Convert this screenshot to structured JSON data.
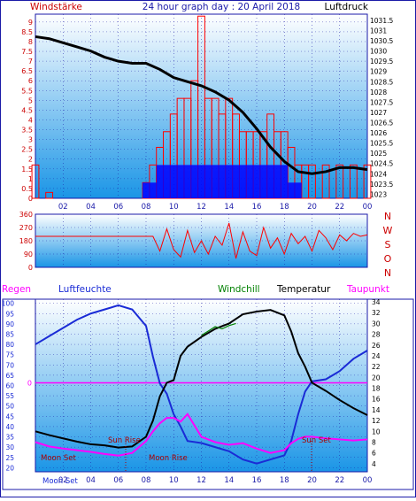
{
  "header": {
    "left_title": "Windstärke",
    "center_title": "24 hour graph day : 20 April 2018",
    "right_title": "Luftdruck"
  },
  "colors": {
    "plot_top": "#ffffff",
    "plot_bottom": "#1a95e6",
    "frame": "#1a1aa8",
    "wind_red": "#ff0000",
    "wind_blue": "#0000ff",
    "pressure": "#000000",
    "humidity": "#1a2bd6",
    "windchill": "#008000",
    "temperature": "#000000",
    "dewpoint": "#ff00ff",
    "rain": "#ff00ff",
    "sun_moon": "#aa0000"
  },
  "chart_data": [
    {
      "type": "bar",
      "panel": "wind-speed-and-pressure",
      "left_axis_label": "Windstärke",
      "right_axis_label": "Luftdruck",
      "x_ticks": [
        "02",
        "04",
        "06",
        "08",
        "10",
        "12",
        "14",
        "16",
        "18",
        "20",
        "22",
        "00"
      ],
      "y_left_ticks": [
        "0",
        "0.5",
        "1",
        "1.5",
        "2",
        "2.5",
        "3",
        "3.5",
        "4",
        "4.5",
        "5",
        "5.5",
        "6",
        "6.5",
        "7",
        "7.5",
        "8",
        "8.5",
        "9"
      ],
      "y_right_ticks": [
        "1023",
        "1023.5",
        "1024",
        "1024.5",
        "1025",
        "1025.5",
        "1026",
        "1026.5",
        "1027",
        "1027.5",
        "1028",
        "1028.5",
        "1029",
        "1029.5",
        "1030",
        "1030.5",
        "1031",
        "1031.5"
      ],
      "ylim_left": [
        0,
        9.4
      ],
      "ylim_right": [
        1022.8,
        1031.8
      ],
      "x_range_hours": [
        0,
        24
      ],
      "series": [
        {
          "name": "Luftdruck",
          "kind": "line",
          "x": [
            0,
            1,
            2,
            3,
            4,
            5,
            6,
            7,
            8,
            9,
            10,
            11,
            12,
            13,
            14,
            15,
            16,
            17,
            18,
            19,
            20,
            21,
            22,
            23,
            24
          ],
          "y": [
            1030.7,
            1030.6,
            1030.4,
            1030.2,
            1030.0,
            1029.7,
            1029.5,
            1029.4,
            1029.4,
            1029.1,
            1028.7,
            1028.5,
            1028.3,
            1028.0,
            1027.6,
            1027.0,
            1026.2,
            1025.3,
            1024.6,
            1024.1,
            1024.0,
            1024.1,
            1024.3,
            1024.3,
            1024.2
          ]
        },
        {
          "name": "wind gust",
          "kind": "bar",
          "x": [
            0,
            1,
            2,
            3,
            4,
            5,
            6,
            7,
            8,
            8.5,
            9,
            9.5,
            10,
            10.5,
            11,
            11.5,
            12,
            12.5,
            13,
            13.5,
            14,
            14.5,
            15,
            15.5,
            16,
            16.5,
            17,
            17.5,
            18,
            18.5,
            19,
            19.5,
            20,
            21,
            22,
            23,
            24
          ],
          "y": [
            1.7,
            0.3,
            0,
            0,
            0,
            0,
            0,
            0,
            0.8,
            1.7,
            2.6,
            3.4,
            4.3,
            5.1,
            5.1,
            6.0,
            9.3,
            5.1,
            5.1,
            4.3,
            5.1,
            4.3,
            3.4,
            3.4,
            3.4,
            3.4,
            4.3,
            3.4,
            3.4,
            2.6,
            1.7,
            1.7,
            1.7,
            1.7,
            1.7,
            1.7,
            1.7
          ]
        },
        {
          "name": "wind speed",
          "kind": "bar",
          "x": [
            8,
            8.5,
            9,
            9.5,
            10,
            10.5,
            11,
            11.5,
            12,
            12.5,
            13,
            13.5,
            14,
            14.5,
            15,
            15.5,
            16,
            16.5,
            17,
            17.5,
            18,
            18.5,
            19
          ],
          "y": [
            0.8,
            0.8,
            1.7,
            1.7,
            1.7,
            1.7,
            1.7,
            1.7,
            1.7,
            1.7,
            1.7,
            1.7,
            1.7,
            1.7,
            1.7,
            1.7,
            1.7,
            1.7,
            1.7,
            1.7,
            1.7,
            0.8,
            0.8
          ]
        }
      ]
    },
    {
      "type": "scatter",
      "panel": "wind-direction",
      "x_range_hours": [
        0,
        24
      ],
      "y_ticks": [
        "0",
        "90",
        "180",
        "270",
        "360"
      ],
      "ylim": [
        0,
        360
      ],
      "direction_labels": [
        "N",
        "W",
        "S",
        "O",
        "N"
      ],
      "series": [
        {
          "name": "wind direction",
          "x": [
            0,
            1,
            2,
            3,
            4,
            5,
            6,
            6.5,
            7,
            7.5,
            8,
            8.5,
            9,
            9.5,
            10,
            10.5,
            11,
            11.5,
            12,
            12.5,
            13,
            13.5,
            14,
            14.5,
            15,
            15.5,
            16,
            16.5,
            17,
            17.5,
            18,
            18.5,
            19,
            19.5,
            20,
            20.5,
            21,
            21.5,
            22,
            22.5,
            23,
            23.5,
            24
          ],
          "y": [
            210,
            210,
            210,
            210,
            210,
            210,
            210,
            210,
            210,
            210,
            210,
            210,
            110,
            260,
            120,
            70,
            250,
            100,
            180,
            90,
            210,
            150,
            300,
            60,
            240,
            110,
            80,
            270,
            130,
            200,
            90,
            230,
            160,
            210,
            110,
            250,
            200,
            120,
            220,
            180,
            230,
            210,
            220
          ]
        }
      ]
    },
    {
      "type": "line",
      "panel": "temperature-humidity",
      "left_axis_label": "Regen",
      "legend": [
        "Regen",
        "Luftfeuchte",
        "Windchill",
        "Temperatur",
        "Taupunkt"
      ],
      "x_ticks": [
        "02",
        "04",
        "06",
        "08",
        "10",
        "12",
        "14",
        "16",
        "18",
        "20",
        "22",
        "00"
      ],
      "y_left_ticks": [
        "20",
        "25",
        "30",
        "35",
        "40",
        "45",
        "50",
        "55",
        "60",
        "65",
        "70",
        "75",
        "80",
        "85",
        "90",
        "95",
        "100"
      ],
      "y_left_range": [
        18,
        102
      ],
      "y_right_ticks": [
        "4",
        "6",
        "8",
        "10",
        "12",
        "14",
        "16",
        "18",
        "20",
        "22",
        "24",
        "26",
        "28",
        "30",
        "32",
        "34"
      ],
      "y_right_range": [
        2.5,
        34.5
      ],
      "rain_marker": "0",
      "annotations": [
        "Sun Rise",
        "Sun Set",
        "Moon Set",
        "Moon Rise",
        "Moon Set"
      ],
      "series": [
        {
          "name": "Luftfeuchte",
          "axis": "left",
          "x": [
            0,
            1,
            2,
            3,
            4,
            5,
            6,
            7,
            8,
            8.5,
            9,
            9.5,
            10,
            10.5,
            11,
            12,
            13,
            14,
            15,
            16,
            17,
            18,
            18.5,
            19,
            19.5,
            20,
            21,
            22,
            23,
            24
          ],
          "y": [
            80,
            84,
            88,
            92,
            95,
            97,
            99,
            97,
            89,
            74,
            61,
            56,
            46,
            40,
            33,
            32,
            30,
            28,
            24,
            22,
            24,
            26,
            33,
            46,
            57,
            62,
            63,
            67,
            73,
            77
          ]
        },
        {
          "name": "Temperatur",
          "axis": "right",
          "x": [
            0,
            1,
            2,
            3,
            4,
            5,
            6,
            7,
            8,
            8.5,
            9,
            9.5,
            10,
            10.5,
            11,
            12,
            13,
            14,
            15,
            16,
            17,
            18,
            18.5,
            19,
            19.5,
            20,
            21,
            22,
            23,
            24
          ],
          "y": [
            10,
            9.3,
            8.7,
            8.1,
            7.6,
            7.4,
            7.0,
            7.2,
            9.0,
            12.0,
            16.5,
            19.0,
            19.5,
            24.0,
            25.7,
            27.5,
            29.0,
            30.0,
            31.7,
            32.2,
            32.5,
            31.5,
            28.5,
            24.5,
            22.0,
            19.0,
            17.5,
            15.8,
            14.3,
            13.0
          ]
        },
        {
          "name": "Windchill",
          "axis": "right",
          "x": [
            12,
            12.5,
            13,
            13.5,
            14,
            14.5
          ],
          "y": [
            27.8,
            28.6,
            29.4,
            29.0,
            29.6,
            30.0
          ]
        },
        {
          "name": "Taupunkt",
          "axis": "right",
          "x": [
            0,
            1,
            2,
            3,
            4,
            5,
            6,
            7,
            8,
            8.5,
            9,
            9.5,
            10,
            10.5,
            11,
            12,
            13,
            14,
            15,
            16,
            17,
            18,
            18.5,
            19,
            19.5,
            20,
            21,
            22,
            23,
            24
          ],
          "y": [
            8.0,
            7.2,
            6.8,
            6.5,
            6.2,
            5.8,
            5.5,
            6.0,
            8.2,
            10.0,
            11.5,
            12.5,
            12.5,
            11.8,
            13.2,
            9.0,
            8.0,
            7.5,
            7.8,
            6.8,
            6.0,
            6.5,
            7.8,
            8.6,
            9.0,
            9.0,
            8.7,
            8.5,
            8.3,
            8.5
          ]
        }
      ]
    }
  ]
}
